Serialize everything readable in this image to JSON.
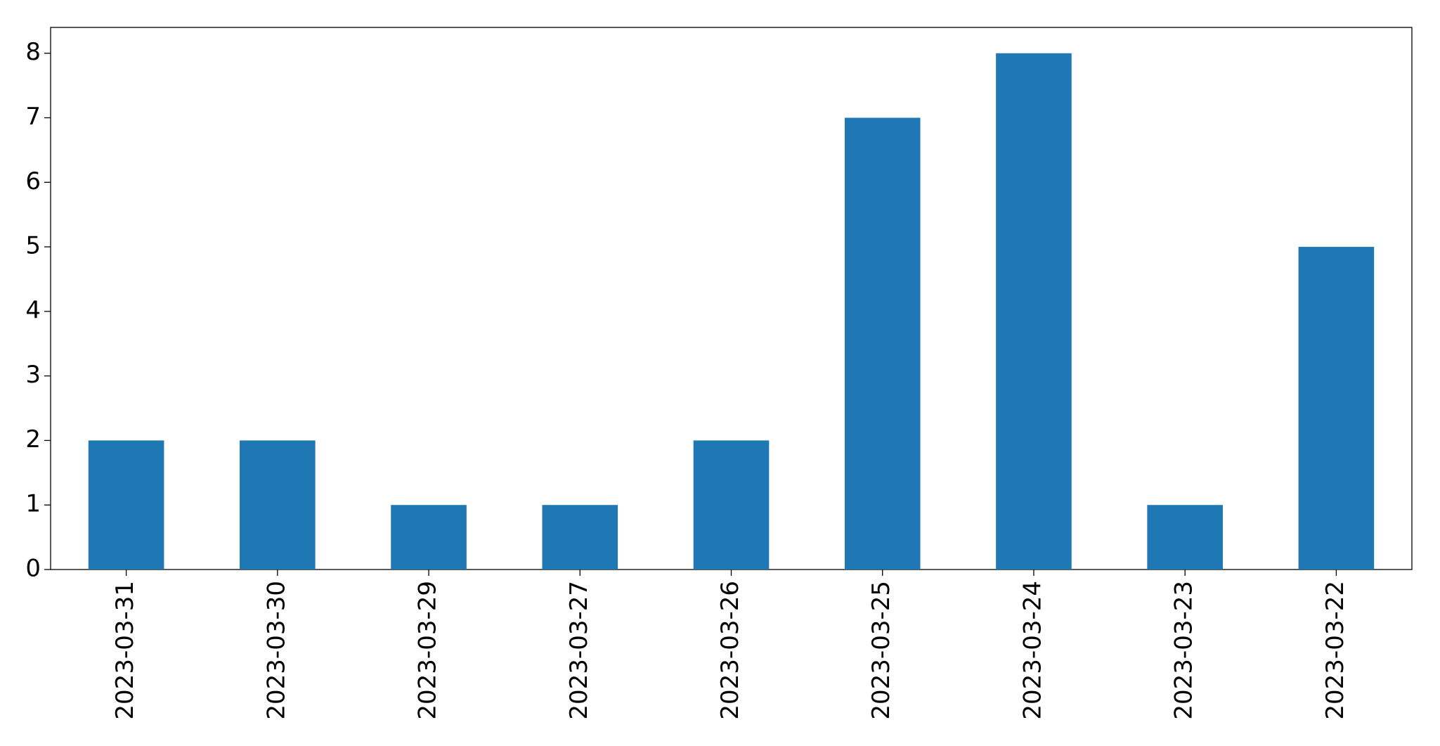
{
  "chart_data": {
    "type": "bar",
    "categories": [
      "2023-03-31",
      "2023-03-30",
      "2023-03-29",
      "2023-03-27",
      "2023-03-26",
      "2023-03-25",
      "2023-03-24",
      "2023-03-23",
      "2023-03-22"
    ],
    "values": [
      2,
      2,
      1,
      1,
      2,
      7,
      8,
      1,
      5
    ],
    "color": "#1f77b4",
    "ylim": [
      0,
      8.4
    ],
    "yticks": [
      0,
      1,
      2,
      3,
      4,
      5,
      6,
      7,
      8
    ],
    "grid": false
  }
}
